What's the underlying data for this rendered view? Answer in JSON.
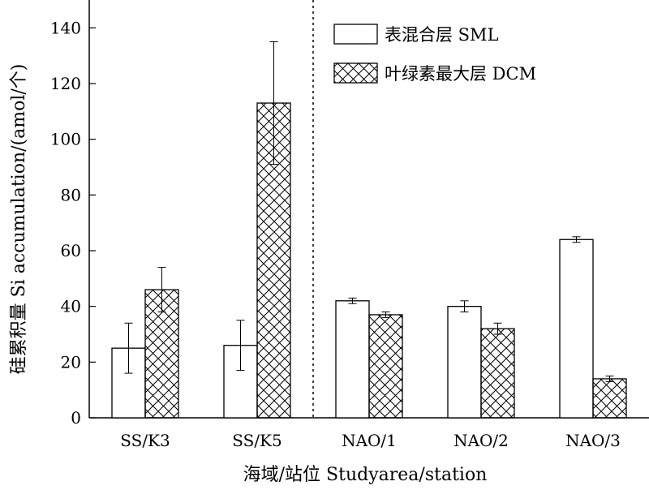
{
  "chart_data": {
    "type": "bar",
    "categories": [
      "SS/K3",
      "SS/K5",
      "NAO/1",
      "NAO/2",
      "NAO/3"
    ],
    "series": [
      {
        "name": "表混合层 SML",
        "values": [
          25,
          26,
          42,
          40,
          64
        ],
        "errors": [
          9,
          9,
          1,
          2,
          1
        ]
      },
      {
        "name": "叶绿素最大层 DCM",
        "values": [
          46,
          113,
          37,
          32,
          14
        ],
        "errors": [
          8,
          22,
          1,
          2,
          1
        ]
      }
    ],
    "xlabel": "海域/站位 Studyarea/station",
    "ylabel": "硅累积量 Si accumulation/(amol/个)",
    "ylim": [
      0,
      150
    ],
    "yticks": [
      0,
      20,
      40,
      60,
      80,
      100,
      120,
      140
    ],
    "divider_after_category": 1,
    "legend_position": "top-right",
    "colors": {
      "sml_fill": "#ffffff",
      "dcm_pattern": "crosshatch",
      "stroke": "#000000"
    }
  }
}
